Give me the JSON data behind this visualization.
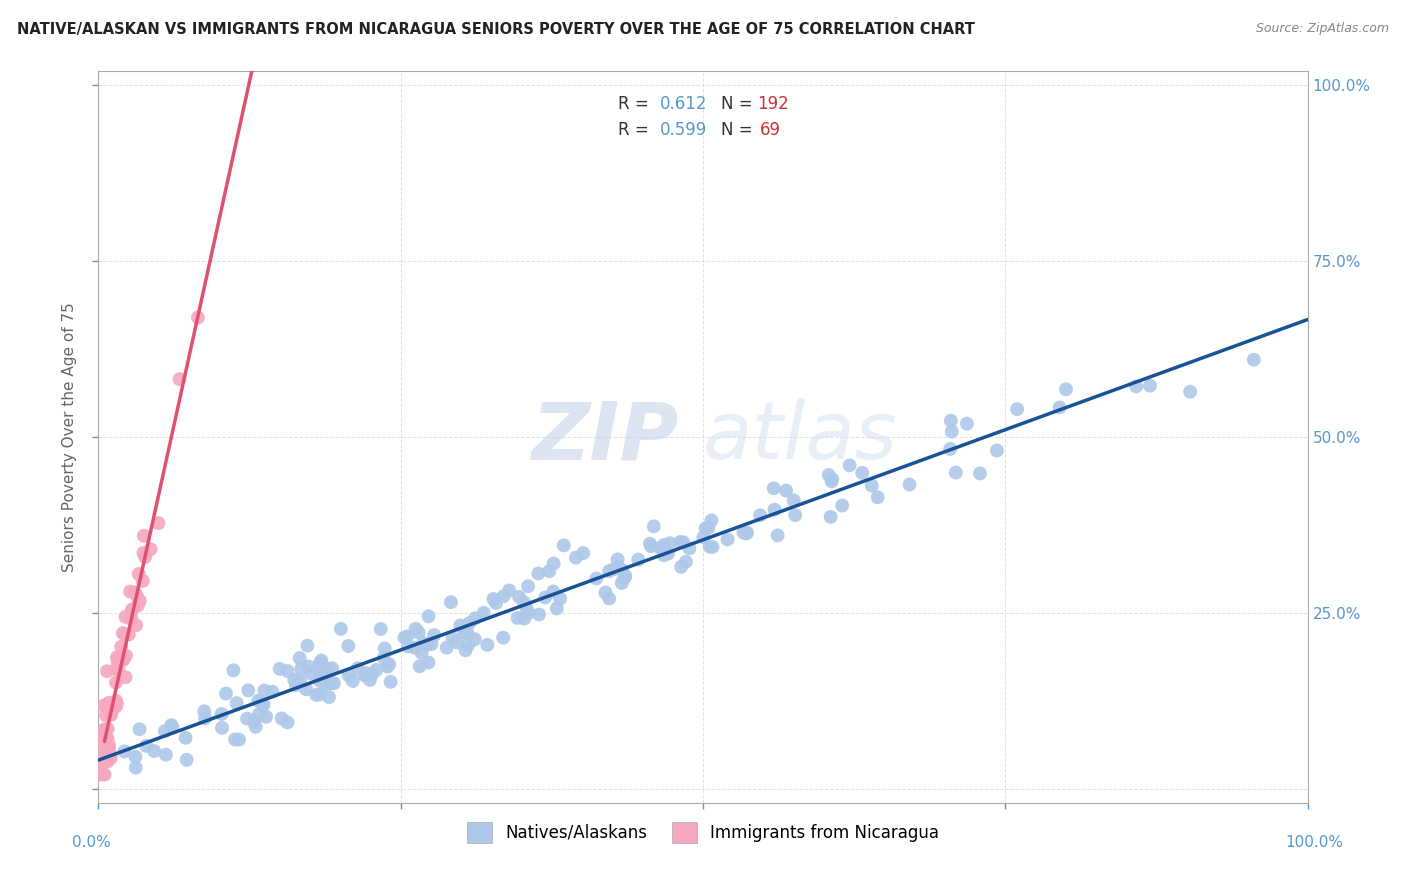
{
  "title": "NATIVE/ALASKAN VS IMMIGRANTS FROM NICARAGUA SENIORS POVERTY OVER THE AGE OF 75 CORRELATION CHART",
  "source": "Source: ZipAtlas.com",
  "ylabel": "Seniors Poverty Over the Age of 75",
  "xlim": [
    0,
    1.0
  ],
  "ylim": [
    -0.02,
    1.02
  ],
  "xticks": [
    0.0,
    0.25,
    0.5,
    0.75,
    1.0
  ],
  "yticks": [
    0.0,
    0.25,
    0.5,
    0.75,
    1.0
  ],
  "blue_color": "#adc8e8",
  "pink_color": "#f5a8be",
  "blue_line_color": "#1a5296",
  "pink_line_color": "#e05070",
  "gray_dash_color": "#ccbbcc",
  "blue_r": 0.612,
  "blue_n": 192,
  "pink_r": 0.599,
  "pink_n": 69,
  "watermark_zip": "ZIP",
  "watermark_atlas": "atlas",
  "legend_label_blue": "Natives/Alaskans",
  "legend_label_pink": "Immigrants from Nicaragua",
  "blue_seed": 42,
  "pink_seed": 7,
  "background_color": "#ffffff",
  "grid_color": "#cccccc",
  "tick_color": "#5599cc",
  "axis_label_color": "#666666",
  "legend_r_color_blue": "#5599cc",
  "legend_n_color_blue": "#cc3333",
  "legend_r_color_pink": "#5599cc",
  "legend_n_color_pink": "#cc3333"
}
